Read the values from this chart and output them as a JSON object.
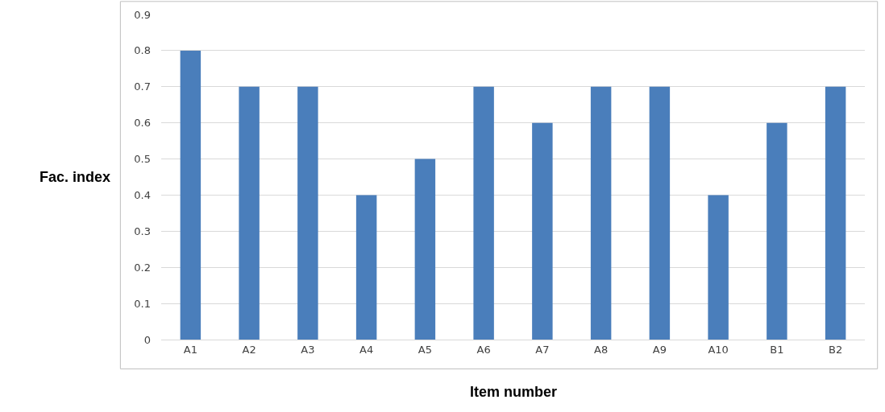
{
  "chart_data": {
    "type": "bar",
    "xlabel": "Item number",
    "ylabel": "Fac. index",
    "categories": [
      "A1",
      "A2",
      "A3",
      "A4",
      "A5",
      "A6",
      "A7",
      "A8",
      "A9",
      "A10",
      "B1",
      "B2"
    ],
    "values": [
      0.8,
      0.7,
      0.7,
      0.4,
      0.5,
      0.7,
      0.6,
      0.7,
      0.7,
      0.4,
      0.6,
      0.7
    ],
    "color": "#4a7ebb",
    "ylim": [
      0,
      0.9
    ],
    "yticks": [
      0,
      0.1,
      0.2,
      0.3,
      0.4,
      0.5,
      0.6,
      0.7,
      0.8,
      0.9
    ],
    "grid": "y"
  }
}
